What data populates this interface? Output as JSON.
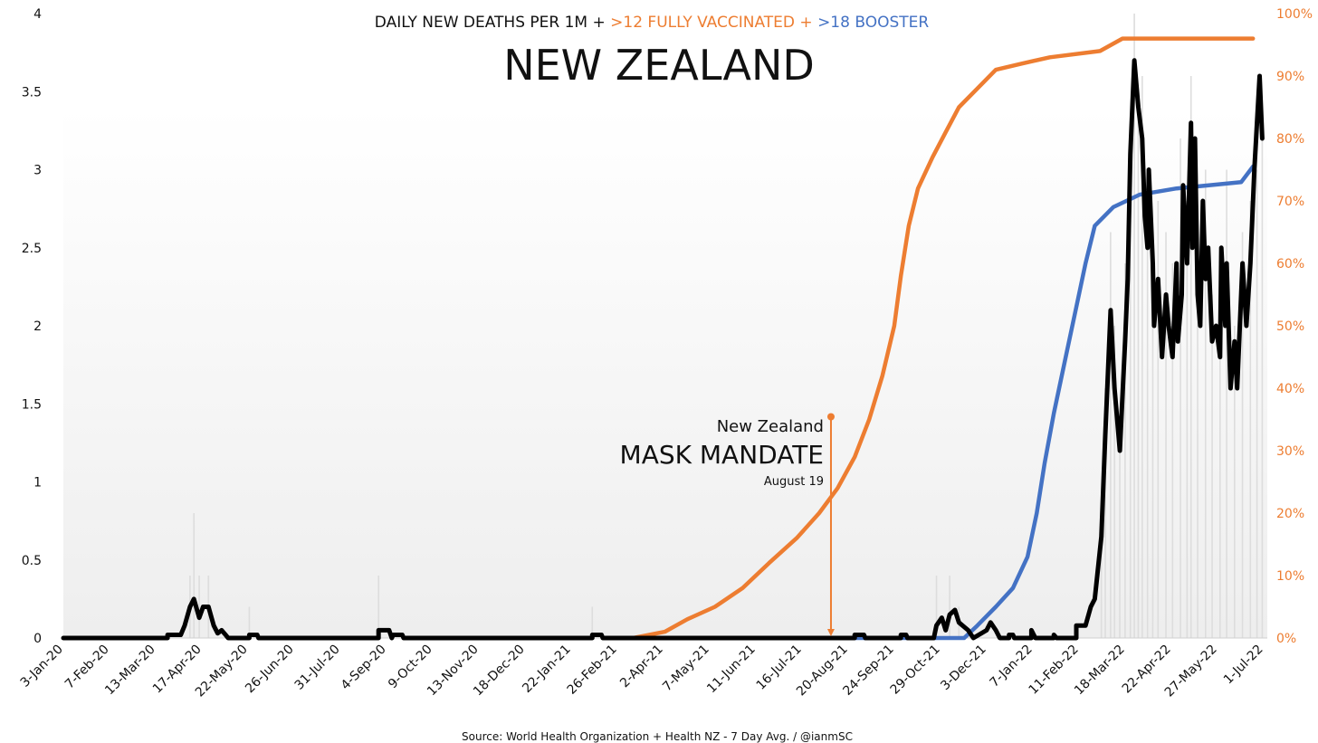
{
  "chart_data": {
    "type": "line",
    "title": "NEW ZEALAND",
    "subtitle_parts": [
      {
        "text": "DAILY NEW DEATHS PER 1M + ",
        "color": "#111111"
      },
      {
        "text": ">12 FULLY VACCINATED + ",
        "color": "#ED7D31"
      },
      {
        "text": ">18 BOOSTER",
        "color": "#4472C4"
      }
    ],
    "source": "Source: World Health Organization + Health NZ - 7 Day Avg. / @ianmSC",
    "x_start_date": "2020-01-03",
    "x_unit": "days since 3-Jan-20",
    "x_range": [
      0,
      910
    ],
    "x_tick_labels": [
      "3-Jan-20",
      "7-Feb-20",
      "13-Mar-20",
      "17-Apr-20",
      "22-May-20",
      "26-Jun-20",
      "31-Jul-20",
      "4-Sep-20",
      "9-Oct-20",
      "13-Nov-20",
      "18-Dec-20",
      "22-Jan-21",
      "26-Feb-21",
      "2-Apr-21",
      "7-May-21",
      "11-Jun-21",
      "16-Jul-21",
      "20-Aug-21",
      "24-Sep-21",
      "29-Oct-21",
      "3-Dec-21",
      "7-Jan-22",
      "11-Feb-22",
      "18-Mar-22",
      "22-Apr-22",
      "27-May-22",
      "1-Jul-22"
    ],
    "x_tick_step_days": 35,
    "y_left": {
      "range": [
        0,
        4
      ],
      "ticks": [
        "0",
        "0.5",
        "1",
        "1.5",
        "2",
        "2.5",
        "3",
        "3.5",
        "4"
      ],
      "label": "Daily new deaths per 1M"
    },
    "y_right": {
      "range": [
        0,
        100
      ],
      "ticks": [
        "0%",
        "10%",
        "20%",
        "30%",
        "40%",
        "50%",
        "60%",
        "70%",
        "80%",
        "90%",
        "100%"
      ],
      "color": "#ED7D31"
    },
    "series": [
      {
        "name": "Daily new deaths per 1M (7-day avg)",
        "axis": "left",
        "color": "#000000",
        "points": [
          [
            0,
            0
          ],
          [
            79,
            0
          ],
          [
            79,
            0.02
          ],
          [
            89,
            0.02
          ],
          [
            92,
            0.08
          ],
          [
            96,
            0.2
          ],
          [
            99,
            0.25
          ],
          [
            103,
            0.13
          ],
          [
            106,
            0.2
          ],
          [
            110,
            0.2
          ],
          [
            114,
            0.08
          ],
          [
            117,
            0.03
          ],
          [
            120,
            0.05
          ],
          [
            123,
            0.02
          ],
          [
            125,
            0
          ],
          [
            141,
            0
          ],
          [
            141,
            0.02
          ],
          [
            147,
            0.02
          ],
          [
            148,
            0
          ],
          [
            239,
            0
          ],
          [
            239,
            0.05
          ],
          [
            247,
            0.05
          ],
          [
            249,
            0
          ],
          [
            250,
            0.02
          ],
          [
            257,
            0.02
          ],
          [
            258,
            0
          ],
          [
            401,
            0
          ],
          [
            401,
            0.02
          ],
          [
            408,
            0.02
          ],
          [
            409,
            0
          ],
          [
            600,
            0
          ],
          [
            600,
            0.02
          ],
          [
            607,
            0.02
          ],
          [
            608,
            0
          ],
          [
            635,
            0
          ],
          [
            635,
            0.02
          ],
          [
            639,
            0.02
          ],
          [
            640,
            0
          ],
          [
            660,
            0
          ],
          [
            662,
            0.08
          ],
          [
            666,
            0.13
          ],
          [
            669,
            0.05
          ],
          [
            672,
            0.15
          ],
          [
            676,
            0.18
          ],
          [
            679,
            0.1
          ],
          [
            686,
            0.05
          ],
          [
            690,
            0
          ],
          [
            700,
            0.05
          ],
          [
            703,
            0.1
          ],
          [
            707,
            0.05
          ],
          [
            710,
            0
          ],
          [
            717,
            0
          ],
          [
            717,
            0.02
          ],
          [
            720,
            0.02
          ],
          [
            721,
            0
          ],
          [
            734,
            0
          ],
          [
            734,
            0.05
          ],
          [
            737,
            0
          ],
          [
            751,
            0
          ],
          [
            751,
            0.02
          ],
          [
            753,
            0
          ],
          [
            768,
            0
          ],
          [
            768,
            0.08
          ],
          [
            775,
            0.08
          ],
          [
            779,
            0.2
          ],
          [
            782,
            0.25
          ],
          [
            787,
            0.65
          ],
          [
            790,
            1.3
          ],
          [
            794,
            2.1
          ],
          [
            797,
            1.6
          ],
          [
            801,
            1.2
          ],
          [
            805,
            1.9
          ],
          [
            807,
            2.3
          ],
          [
            809,
            3.1
          ],
          [
            812,
            3.7
          ],
          [
            815,
            3.4
          ],
          [
            818,
            3.2
          ],
          [
            820,
            2.7
          ],
          [
            822,
            2.5
          ],
          [
            823,
            3.0
          ],
          [
            826,
            2.4
          ],
          [
            827,
            2.0
          ],
          [
            830,
            2.3
          ],
          [
            833,
            1.8
          ],
          [
            836,
            2.2
          ],
          [
            838,
            2.0
          ],
          [
            841,
            1.8
          ],
          [
            844,
            2.4
          ],
          [
            845,
            1.9
          ],
          [
            847,
            2.1
          ],
          [
            848,
            2.2
          ],
          [
            849,
            2.9
          ],
          [
            852,
            2.4
          ],
          [
            855,
            3.3
          ],
          [
            856,
            2.5
          ],
          [
            858,
            3.2
          ],
          [
            860,
            2.2
          ],
          [
            862,
            2.0
          ],
          [
            864,
            2.8
          ],
          [
            866,
            2.3
          ],
          [
            868,
            2.5
          ],
          [
            871,
            1.9
          ],
          [
            874,
            2.0
          ],
          [
            877,
            1.8
          ],
          [
            878,
            2.5
          ],
          [
            881,
            2.0
          ],
          [
            882,
            2.4
          ],
          [
            885,
            1.6
          ],
          [
            888,
            1.9
          ],
          [
            890,
            1.6
          ],
          [
            894,
            2.4
          ],
          [
            897,
            2.0
          ],
          [
            900,
            2.4
          ],
          [
            903,
            3.0
          ],
          [
            907,
            3.6
          ],
          [
            909,
            3.2
          ]
        ]
      },
      {
        "name": ">12 fully vaccinated",
        "axis": "right",
        "color": "#ED7D31",
        "points": [
          [
            432,
            0
          ],
          [
            456,
            1
          ],
          [
            473,
            3
          ],
          [
            494,
            5
          ],
          [
            515,
            8
          ],
          [
            535,
            12
          ],
          [
            556,
            16
          ],
          [
            573,
            20
          ],
          [
            587,
            24
          ],
          [
            600,
            29
          ],
          [
            611,
            35
          ],
          [
            621,
            42
          ],
          [
            630,
            50
          ],
          [
            635,
            58
          ],
          [
            641,
            66
          ],
          [
            648,
            72
          ],
          [
            659,
            77
          ],
          [
            669,
            81
          ],
          [
            679,
            85
          ],
          [
            693,
            88
          ],
          [
            707,
            91
          ],
          [
            727,
            92
          ],
          [
            748,
            93
          ],
          [
            786,
            94
          ],
          [
            803,
            96
          ],
          [
            902,
            96
          ]
        ]
      },
      {
        "name": ">18 booster",
        "axis": "right",
        "color": "#4472C4",
        "points": [
          [
            432,
            0
          ],
          [
            683,
            0
          ],
          [
            693,
            2
          ],
          [
            707,
            5
          ],
          [
            720,
            8
          ],
          [
            731,
            13
          ],
          [
            738,
            20
          ],
          [
            744,
            28
          ],
          [
            751,
            36
          ],
          [
            760,
            45
          ],
          [
            768,
            53
          ],
          [
            775,
            60
          ],
          [
            782,
            66
          ],
          [
            796,
            69
          ],
          [
            816,
            71
          ],
          [
            844,
            72
          ],
          [
            893,
            73
          ],
          [
            902,
            75.5
          ]
        ]
      }
    ],
    "daily_bars": {
      "name": "Daily new deaths per 1M (raw)",
      "axis": "left",
      "color": "#DDDDDD",
      "points": [
        [
          96,
          0.4
        ],
        [
          99,
          0.8
        ],
        [
          103,
          0.4
        ],
        [
          110,
          0.4
        ],
        [
          141,
          0.2
        ],
        [
          239,
          0.4
        ],
        [
          401,
          0.2
        ],
        [
          662,
          0.4
        ],
        [
          672,
          0.4
        ],
        [
          679,
          0.2
        ],
        [
          787,
          0.6
        ],
        [
          790,
          1.6
        ],
        [
          794,
          2.6
        ],
        [
          797,
          2.0
        ],
        [
          801,
          1.4
        ],
        [
          805,
          2.4
        ],
        [
          809,
          3.0
        ],
        [
          812,
          4.0
        ],
        [
          815,
          3.4
        ],
        [
          818,
          3.6
        ],
        [
          822,
          3.0
        ],
        [
          826,
          2.6
        ],
        [
          830,
          2.8
        ],
        [
          836,
          2.6
        ],
        [
          841,
          2.4
        ],
        [
          847,
          3.2
        ],
        [
          852,
          2.8
        ],
        [
          855,
          3.6
        ],
        [
          860,
          2.6
        ],
        [
          866,
          3.0
        ],
        [
          871,
          2.2
        ],
        [
          877,
          2.4
        ],
        [
          882,
          3.0
        ],
        [
          888,
          2.0
        ],
        [
          894,
          2.6
        ],
        [
          900,
          2.8
        ],
        [
          905,
          3.0
        ],
        [
          909,
          3.2
        ]
      ]
    },
    "annotation": {
      "line1": "New Zealand",
      "line2": "MASK MANDATE",
      "line3": "August 19",
      "x_day": 582,
      "y_top_left_axis": 1.4,
      "color": "#ED7D31"
    }
  }
}
